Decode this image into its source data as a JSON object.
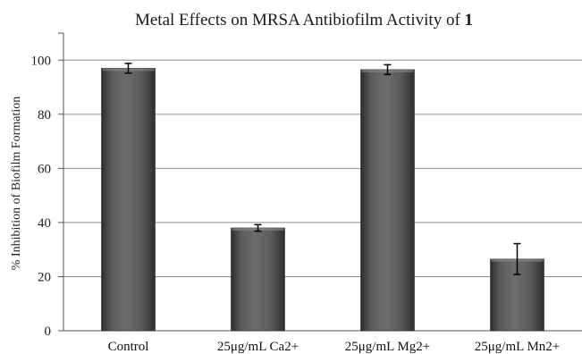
{
  "chart_data": {
    "type": "bar",
    "title": "Metal Effects on MRSA Antibiofilm Activity of ",
    "title_bold_suffix": "1",
    "xlabel": "",
    "ylabel": "% Inhibition of Biofilm Formation",
    "ylim": [
      0,
      110
    ],
    "yticks": [
      0,
      20,
      40,
      60,
      80,
      100
    ],
    "categories": [
      "Control",
      "25μg/mL Ca2+",
      "25μg/mL Mg2+",
      "25μg/mL Mn2+"
    ],
    "values": [
      97,
      38,
      96.5,
      26.5
    ],
    "errors": [
      1.8,
      1.2,
      1.8,
      5.7
    ],
    "grid": true,
    "colors": {
      "bar_dark": "#3c3c3c",
      "bar_mid": "#6a6a6a",
      "bar_light": "#8a8a8a",
      "grid": "#8c8c8c",
      "axis": "#555555"
    }
  }
}
